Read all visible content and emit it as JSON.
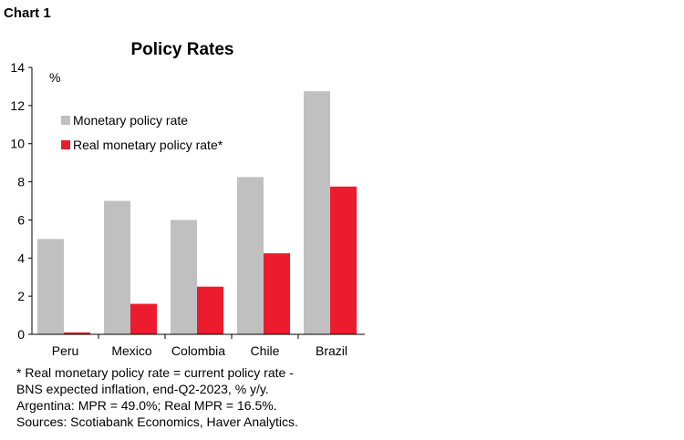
{
  "header": {
    "chart_label": "Chart 1"
  },
  "chart_data": {
    "type": "bar",
    "title": "Policy Rates",
    "ylabel": "%",
    "xlabel": "",
    "ylim": [
      0,
      14
    ],
    "yticks": [
      0,
      2,
      4,
      6,
      8,
      10,
      12,
      14
    ],
    "categories": [
      "Peru",
      "Mexico",
      "Colombia",
      "Chile",
      "Brazil"
    ],
    "series": [
      {
        "name": "Monetary policy rate",
        "color": "#c0c0c0",
        "values": [
          5.0,
          7.0,
          6.0,
          8.25,
          12.75
        ]
      },
      {
        "name": "Real monetary policy rate*",
        "color": "#ec1c2e",
        "values": [
          0.1,
          1.6,
          2.5,
          4.25,
          7.75
        ]
      }
    ],
    "legend": "top-left",
    "grid": false
  },
  "notes": [
    "* Real monetary policy rate = current policy rate -",
    "BNS expected inflation, end-Q2-2023, % y/y.",
    "Argentina: MPR = 49.0%; Real MPR = 16.5%.",
    "Sources: Scotiabank Economics, Haver Analytics."
  ]
}
